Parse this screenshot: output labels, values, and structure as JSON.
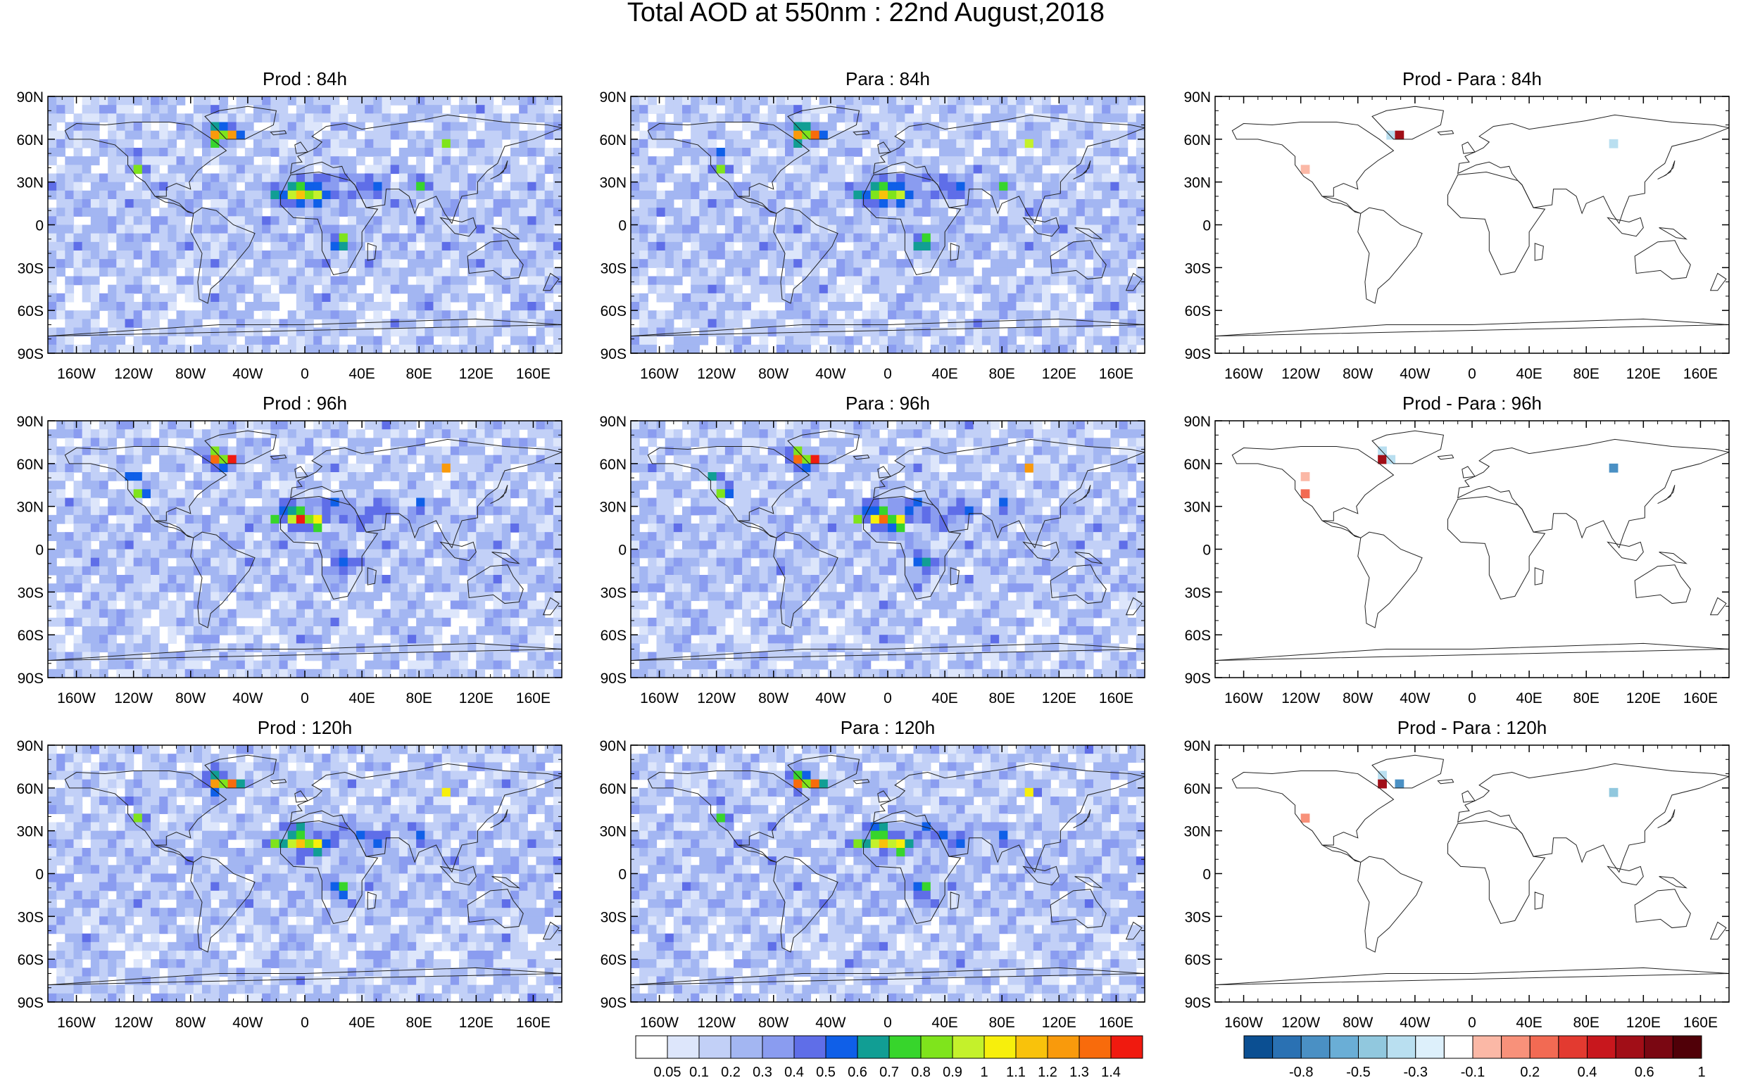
{
  "figure": {
    "title": "Total AOD at 550nm : 22nd August,2018"
  },
  "panels": [
    {
      "id": "prod-84h",
      "title": "Prod : 84h",
      "kind": "aod",
      "row": 0,
      "col": 0
    },
    {
      "id": "para-84h",
      "title": "Para : 84h",
      "kind": "aod",
      "row": 0,
      "col": 1
    },
    {
      "id": "diff-84h",
      "title": "Prod - Para : 84h",
      "kind": "diff",
      "row": 0,
      "col": 2
    },
    {
      "id": "prod-96h",
      "title": "Prod : 96h",
      "kind": "aod",
      "row": 1,
      "col": 0
    },
    {
      "id": "para-96h",
      "title": "Para : 96h",
      "kind": "aod",
      "row": 1,
      "col": 1
    },
    {
      "id": "diff-96h",
      "title": "Prod - Para : 96h",
      "kind": "diff",
      "row": 1,
      "col": 2
    },
    {
      "id": "prod-120h",
      "title": "Prod : 120h",
      "kind": "aod",
      "row": 2,
      "col": 0
    },
    {
      "id": "para-120h",
      "title": "Para : 120h",
      "kind": "aod",
      "row": 2,
      "col": 1
    },
    {
      "id": "diff-120h",
      "title": "Prod - Para : 120h",
      "kind": "diff",
      "row": 2,
      "col": 2
    }
  ],
  "axes": {
    "lat_labels": [
      "90N",
      "60N",
      "30N",
      "0",
      "30S",
      "60S",
      "90S"
    ],
    "lon_labels": [
      "160W",
      "120W",
      "80W",
      "40W",
      "0",
      "40E",
      "80E",
      "120E",
      "160E"
    ],
    "lat_values": [
      90,
      60,
      30,
      0,
      -30,
      -60,
      -90
    ],
    "lon_values": [
      -160,
      -120,
      -80,
      -40,
      0,
      40,
      80,
      120,
      160
    ]
  },
  "colorbars": {
    "aod": {
      "labels": [
        "0.05",
        "0.1",
        "0.2",
        "0.3",
        "0.4",
        "0.5",
        "0.6",
        "0.7",
        "0.8",
        "0.9",
        "1",
        "1.1",
        "1.2",
        "1.3",
        "1.4"
      ],
      "colors": [
        "#ffffff",
        "#dde6fb",
        "#c2d0f7",
        "#a3b6f2",
        "#8a9cf0",
        "#5f6ee8",
        "#0f5fe8",
        "#119e94",
        "#37d52c",
        "#7fe41c",
        "#c4f12b",
        "#f7ef0c",
        "#f9c20b",
        "#f99a0c",
        "#f86b0c",
        "#f01a0f"
      ]
    },
    "diff": {
      "labels": [
        "-0.8",
        "-0.5",
        "-0.3",
        "-0.1",
        "0.2",
        "0.4",
        "0.6",
        "1"
      ],
      "colors": [
        "#0b4f92",
        "#2a71b3",
        "#4a90c4",
        "#6aaed6",
        "#91c8de",
        "#b9dff0",
        "#ddf0fb",
        "#ffffff",
        "#fbb8a6",
        "#f8917a",
        "#f26a53",
        "#e33a30",
        "#c8171d",
        "#a10e17",
        "#7a0712",
        "#500008"
      ]
    }
  }
}
